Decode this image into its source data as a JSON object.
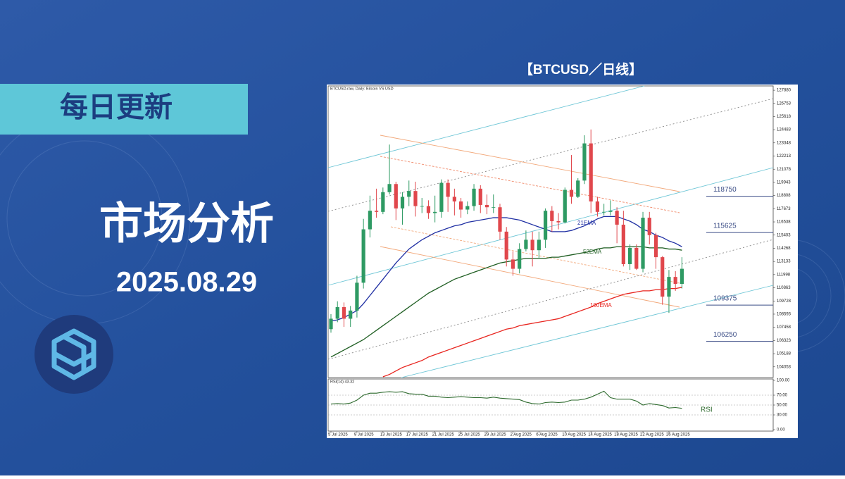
{
  "header": {
    "tag": "每日更新",
    "title": "市场分析",
    "date": "2025.08.29",
    "chart_caption": "【BTCUSD／日线】"
  },
  "chart_data": [
    {
      "type": "candlestick",
      "title": "BTCUSD.raw, Daily: Bitcoin VS USD",
      "categories": [
        "5 Jul 2025",
        null,
        null,
        null,
        "9 Jul 2025",
        null,
        null,
        null,
        "13 Jul 2025",
        null,
        null,
        null,
        "17 Jul 2025",
        null,
        null,
        null,
        "21 Jul 2025",
        null,
        null,
        null,
        "25 Jul 2025",
        null,
        null,
        null,
        "29 Jul 2025",
        null,
        null,
        null,
        "2 Aug 2025",
        null,
        null,
        null,
        "6 Aug 2025",
        null,
        null,
        null,
        "10 Aug 2025",
        null,
        null,
        null,
        "14 Aug 2025",
        null,
        null,
        null,
        "18 Aug 2025",
        null,
        null,
        null,
        "22 Aug 2025",
        null,
        null,
        null,
        "26 Aug 2025",
        null,
        null
      ],
      "open": [
        107300,
        108200,
        109200,
        108200,
        108900,
        111300,
        115900,
        117500,
        117400,
        119100,
        119800,
        117700,
        118700,
        119200,
        117900,
        117900,
        117300,
        117400,
        119900,
        118700,
        118300,
        117600,
        117900,
        119400,
        118000,
        117800,
        117800,
        115700,
        113300,
        112500,
        114200,
        115000,
        114100,
        115000,
        117500,
        116600,
        116500,
        119300,
        118700,
        120100,
        123300,
        118300,
        117400,
        117400,
        117500,
        116300,
        112900,
        114300,
        112500,
        116900,
        115400,
        113500,
        110100,
        111800,
        111200
      ],
      "high": [
        108600,
        109700,
        109600,
        109300,
        111900,
        116800,
        118800,
        119400,
        119500,
        123200,
        120000,
        119100,
        120100,
        120000,
        118600,
        118400,
        118800,
        120200,
        120200,
        119400,
        118600,
        118300,
        119800,
        119700,
        118900,
        118900,
        118100,
        116100,
        114000,
        114700,
        115800,
        115700,
        115700,
        117700,
        117900,
        117300,
        119500,
        122300,
        120300,
        124000,
        124500,
        118700,
        118100,
        118400,
        117800,
        117500,
        114600,
        114600,
        117400,
        117400,
        115600,
        113600,
        112400,
        112300,
        113500
      ],
      "low": [
        107000,
        107900,
        107500,
        107500,
        108300,
        110800,
        115200,
        116900,
        117200,
        118900,
        116700,
        116300,
        117900,
        117000,
        117300,
        116800,
        116500,
        116900,
        117400,
        117100,
        116900,
        117200,
        117500,
        117300,
        117200,
        117300,
        115000,
        112700,
        111900,
        112100,
        114000,
        112700,
        113400,
        114300,
        115700,
        115900,
        116400,
        118100,
        118600,
        119800,
        117300,
        117000,
        117100,
        117100,
        114700,
        112700,
        112400,
        112400,
        112200,
        114600,
        112500,
        109400,
        108700,
        110600,
        110800
      ],
      "close": [
        108200,
        109200,
        108200,
        108900,
        111300,
        115900,
        117500,
        117400,
        119100,
        119800,
        117700,
        118700,
        119200,
        117900,
        117900,
        117300,
        117400,
        119900,
        118700,
        118300,
        117600,
        117900,
        119400,
        118000,
        117800,
        117800,
        115700,
        113300,
        112500,
        114200,
        115000,
        114100,
        115000,
        117500,
        116600,
        116500,
        119300,
        118700,
        120100,
        123300,
        118300,
        117400,
        117400,
        117500,
        116300,
        112900,
        114300,
        112500,
        116900,
        115400,
        113500,
        110100,
        111800,
        111200,
        112500
      ],
      "up_color": "#2e9a63",
      "down_color": "#e0474c",
      "series": [
        {
          "name": "21EMA",
          "color": "#1f2fa3",
          "values": [
            108000,
            108100,
            108300,
            108600,
            108900,
            109500,
            110200,
            110900,
            111600,
            112300,
            113000,
            113600,
            114200,
            114600,
            115000,
            115300,
            115600,
            115800,
            116000,
            116200,
            116300,
            116500,
            116600,
            116700,
            116800,
            116900,
            116900,
            116900,
            116800,
            116700,
            116500,
            116300,
            116100,
            115900,
            115700,
            115700,
            115700,
            115800,
            116000,
            116200,
            116500,
            116800,
            117000,
            117000,
            117000,
            116800,
            116600,
            116300,
            115900,
            115700,
            115400,
            115200,
            114900,
            114700,
            114400
          ]
        },
        {
          "name": "52EMA",
          "color": "#1f5e22",
          "values": [
            104900,
            105200,
            105500,
            105800,
            106100,
            106400,
            106800,
            107200,
            107600,
            108000,
            108400,
            108800,
            109200,
            109600,
            110000,
            110400,
            110700,
            111000,
            111300,
            111600,
            111800,
            112000,
            112200,
            112400,
            112600,
            112800,
            113000,
            113100,
            113200,
            113300,
            113400,
            113400,
            113400,
            113400,
            113500,
            113500,
            113600,
            113700,
            113800,
            113900,
            114000,
            114200,
            114300,
            114300,
            114400,
            114400,
            114400,
            114400,
            114400,
            114300,
            114300,
            114300,
            114200,
            114200,
            114100
          ]
        },
        {
          "name": "100EMA",
          "color": "#e8251f",
          "values": [
            null,
            null,
            null,
            null,
            null,
            null,
            null,
            null,
            103200,
            103400,
            103700,
            104000,
            104200,
            104400,
            104600,
            104900,
            105100,
            105300,
            105500,
            105700,
            105900,
            106100,
            106300,
            106500,
            106700,
            106900,
            107100,
            107300,
            107400,
            107600,
            107700,
            107800,
            107900,
            108000,
            108100,
            108200,
            108400,
            108600,
            108800,
            109000,
            109200,
            109500,
            109700,
            109900,
            110100,
            110300,
            110400,
            110500,
            110600,
            110600,
            110700,
            110700,
            110800,
            110800,
            110900
          ]
        }
      ],
      "levels": [
        118750,
        115625,
        109375,
        106250
      ],
      "level_color": "#3b4d86",
      "ylim": [
        103130,
        128250
      ],
      "yticks": [
        127880,
        126753,
        125618,
        124483,
        123348,
        122213,
        121078,
        119943,
        118808,
        117673,
        116538,
        115403,
        114268,
        113133,
        111998,
        110863,
        109728,
        108593,
        107458,
        106323,
        105188,
        104053
      ]
    },
    {
      "type": "line",
      "title": "RSI(14) 43.32",
      "series": [
        {
          "name": "RSI",
          "color": "#2d6a2d",
          "values": [
            52,
            53,
            52,
            54,
            60,
            70,
            74,
            74,
            76,
            77,
            76,
            77,
            73,
            72,
            72,
            68,
            68,
            66,
            65,
            66,
            67,
            66,
            65,
            65,
            64,
            66,
            64,
            63,
            62,
            61,
            56,
            53,
            52,
            55,
            56,
            55,
            56,
            60,
            60,
            62,
            66,
            72,
            78,
            65,
            62,
            62,
            62,
            58,
            50,
            53,
            51,
            49,
            44,
            45,
            43.32
          ]
        }
      ],
      "ylim": [
        0,
        100
      ],
      "yticks": [
        {
          "value": 100,
          "label": "100.00"
        },
        {
          "value": 70,
          "label": "70.00"
        },
        {
          "value": 50,
          "label": "50.00"
        },
        {
          "value": 30,
          "label": "30.00"
        },
        {
          "value": 0,
          "label": "0.00"
        }
      ],
      "grid": true
    }
  ]
}
